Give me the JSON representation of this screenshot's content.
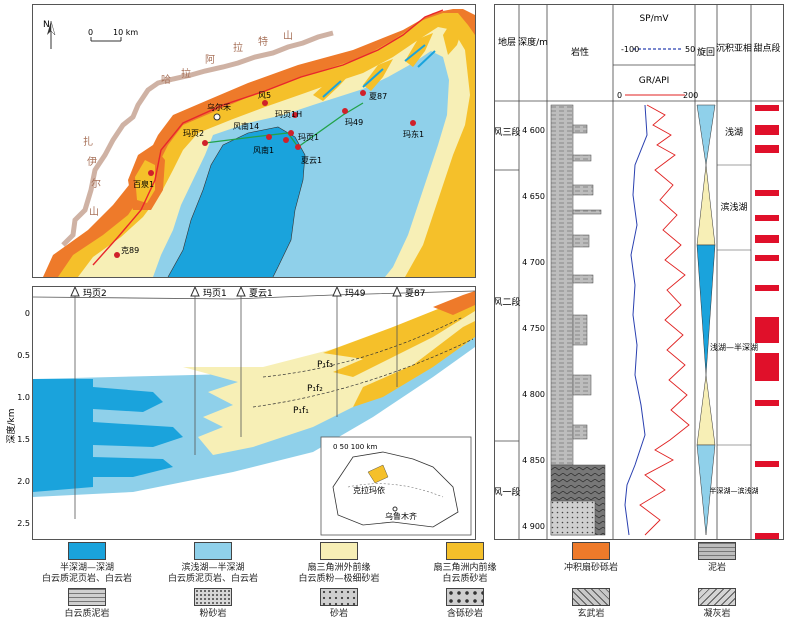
{
  "map": {
    "north": "N",
    "scale_zero": "0",
    "scale_label": "10 km",
    "mountain_zaire": [
      "扎",
      "伊",
      "尔",
      "山"
    ],
    "mountain_hala": [
      "哈",
      "拉",
      "阿",
      "拉",
      "特",
      "山"
    ],
    "wells": [
      {
        "name": "乌尔禾"
      },
      {
        "name": "风5"
      },
      {
        "name": "玛页1H"
      },
      {
        "name": "夏87"
      },
      {
        "name": "玛页2"
      },
      {
        "name": "风南14"
      },
      {
        "name": "玛页1"
      },
      {
        "name": "风南1"
      },
      {
        "name": "夏云1"
      },
      {
        "name": "玛49"
      },
      {
        "name": "玛东1"
      },
      {
        "name": "百泉1"
      },
      {
        "name": "克89"
      }
    ]
  },
  "section": {
    "wells": [
      "玛页2",
      "玛页1",
      "夏云1",
      "玛49",
      "夏87"
    ],
    "ylabel": "深度/km",
    "yticks": [
      "0",
      "0.5",
      "1.0",
      "1.5",
      "2.0",
      "2.5"
    ],
    "units": [
      "P₁f₃",
      "P₁f₂",
      "P₁f₁"
    ],
    "inset": {
      "scale": "0  50 100 km",
      "basin": "克拉玛依",
      "city": "乌鲁木齐"
    }
  },
  "column": {
    "headers": {
      "stratum": "地层",
      "depth": "深度/m",
      "lithology": "岩性",
      "sp": "SP/mV",
      "sp_min": "-100",
      "sp_max": "50",
      "gr": "GR/API",
      "gr_min": "0",
      "gr_max": "200",
      "cycle": "旋回",
      "facies": "沉积亚相",
      "sweet": "甜点段"
    },
    "depth_ticks": [
      "4 600",
      "4 650",
      "4 700",
      "4 750",
      "4 800",
      "4 850",
      "4 900"
    ],
    "strata": [
      "风三段",
      "风二段",
      "风一段"
    ],
    "facies": [
      "浅湖",
      "滨浅湖",
      "浅湖—半深湖",
      "半深湖—滨浅湖"
    ]
  },
  "legend": [
    {
      "l1": "半深湖—深湖",
      "l2": "白云质泥页岩、白云岩",
      "color": "#1aa3dc"
    },
    {
      "l1": "滨浅湖—半深湖",
      "l2": "白云质泥页岩、白云岩",
      "color": "#8fd0ea"
    },
    {
      "l1": "扇三角洲外前缘",
      "l2": "白云质粉—极细砂岩",
      "color": "#f7efb6"
    },
    {
      "l1": "扇三角洲内前缘",
      "l2": "白云质砂岩",
      "color": "#f5c02a"
    },
    {
      "l1": "冲积扇砂砾岩",
      "l2": "",
      "color": "#ee7a2a"
    },
    {
      "l1": "泥岩",
      "l2": "",
      "color": "#bdbdbd"
    },
    {
      "l1": "白云质泥岩",
      "l2": "",
      "color": "#d0d0d0"
    },
    {
      "l1": "粉砂岩",
      "l2": "",
      "color": "#d8d8d8"
    },
    {
      "l1": "砂岩",
      "l2": "",
      "color": "#cfcfcf"
    },
    {
      "l1": "含砾砂岩",
      "l2": "",
      "color": "#cfcfcf"
    },
    {
      "l1": "玄武岩",
      "l2": "",
      "color": "#c8c8c8"
    },
    {
      "l1": "凝灰岩",
      "l2": "",
      "color": "#d4d4d4"
    }
  ]
}
